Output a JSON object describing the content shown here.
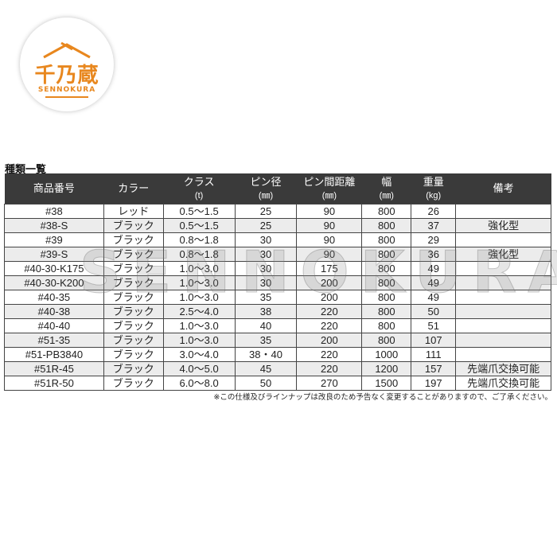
{
  "logo": {
    "kanji": "千乃蔵",
    "en": "SENNOKURA",
    "color": "#e8871e"
  },
  "title": "種類一覧",
  "watermark": "SENNOKURA",
  "headers": [
    {
      "label": "商品番号",
      "unit": ""
    },
    {
      "label": "カラー",
      "unit": ""
    },
    {
      "label": "クラス",
      "unit": "(t)"
    },
    {
      "label": "ピン径",
      "unit": "(㎜)"
    },
    {
      "label": "ピン間距離",
      "unit": "(㎜)"
    },
    {
      "label": "幅",
      "unit": "(㎜)"
    },
    {
      "label": "重量",
      "unit": "(kg)"
    },
    {
      "label": "備考",
      "unit": ""
    }
  ],
  "rows": [
    [
      "#38",
      "レッド",
      "0.5〜1.5",
      "25",
      "90",
      "800",
      "26",
      ""
    ],
    [
      "#38-S",
      "ブラック",
      "0.5〜1.5",
      "25",
      "90",
      "800",
      "37",
      "強化型"
    ],
    [
      "#39",
      "ブラック",
      "0.8〜1.8",
      "30",
      "90",
      "800",
      "29",
      ""
    ],
    [
      "#39-S",
      "ブラック",
      "0.8〜1.8",
      "30",
      "90",
      "800",
      "36",
      "強化型"
    ],
    [
      "#40-30-K175",
      "ブラック",
      "1.0〜3.0",
      "30",
      "175",
      "800",
      "49",
      ""
    ],
    [
      "#40-30-K200",
      "ブラック",
      "1.0〜3.0",
      "30",
      "200",
      "800",
      "49",
      ""
    ],
    [
      "#40-35",
      "ブラック",
      "1.0〜3.0",
      "35",
      "200",
      "800",
      "49",
      ""
    ],
    [
      "#40-38",
      "ブラック",
      "2.5〜4.0",
      "38",
      "220",
      "800",
      "50",
      ""
    ],
    [
      "#40-40",
      "ブラック",
      "1.0〜3.0",
      "40",
      "220",
      "800",
      "51",
      ""
    ],
    [
      "#51-35",
      "ブラック",
      "1.0〜3.0",
      "35",
      "200",
      "800",
      "107",
      ""
    ],
    [
      "#51-PB3840",
      "ブラック",
      "3.0〜4.0",
      "38・40",
      "220",
      "1000",
      "111",
      ""
    ],
    [
      "#51R-45",
      "ブラック",
      "4.0〜5.0",
      "45",
      "220",
      "1200",
      "157",
      "先端爪交換可能"
    ],
    [
      "#51R-50",
      "ブラック",
      "6.0〜8.0",
      "50",
      "270",
      "1500",
      "197",
      "先端爪交換可能"
    ]
  ],
  "note": "※この仕様及びラインナップは改良のため予告なく変更することがありますので、ご了承ください。"
}
